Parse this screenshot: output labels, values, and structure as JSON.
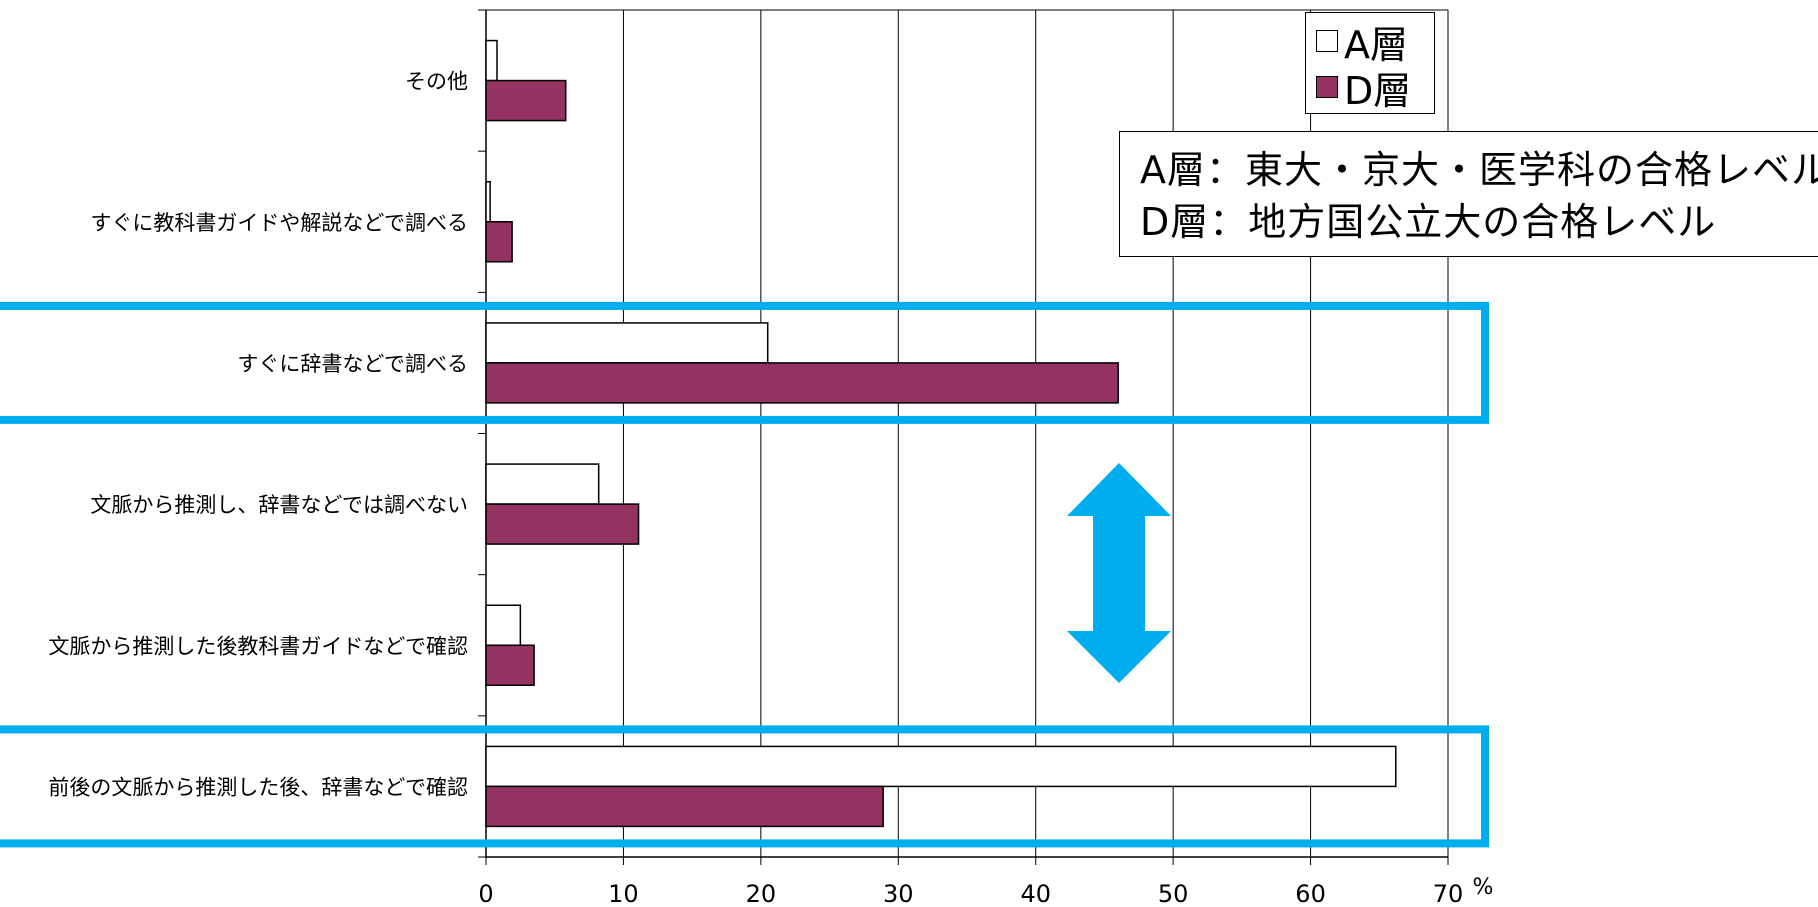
{
  "chart_data": {
    "type": "bar",
    "orientation": "horizontal",
    "categories": [
      "その他",
      "すぐに教科書ガイドや解説などで調べる",
      "すぐに辞書などで調べる",
      "文脈から推測し、辞書などでは調べない",
      "文脈から推測した後教科書ガイドなどで確認",
      "前後の文脈から推測した後、辞書などで確認"
    ],
    "series": [
      {
        "name": "A層",
        "color": "#ffffff",
        "values": [
          0.8,
          0.3,
          20.5,
          8.2,
          2.5,
          66.2
        ]
      },
      {
        "name": "D層",
        "color": "#943262",
        "values": [
          5.8,
          1.9,
          46.0,
          11.1,
          3.5,
          28.9
        ]
      }
    ],
    "xlim": [
      0,
      70
    ],
    "xticks": [
      0,
      10,
      20,
      30,
      40,
      50,
      60,
      70
    ],
    "xtick_labels": [
      "0",
      "10",
      "20",
      "30",
      "40",
      "50",
      "60",
      "70"
    ],
    "unit_label": "%",
    "grid": "vertical",
    "legend_position": "top-right"
  },
  "legend": {
    "a_label": "□A層",
    "d_label": "■D層",
    "a_text": "A層",
    "d_text": "D層"
  },
  "note": {
    "line1": "A層：東大・京大・医学科の合格レベル",
    "line2": "D層：地方国公立大の合格レベル"
  },
  "highlight_color": "#00aeef",
  "highlighted_categories": [
    "すぐに辞書などで調べる",
    "前後の文脈から推測した後、辞書などで確認"
  ]
}
